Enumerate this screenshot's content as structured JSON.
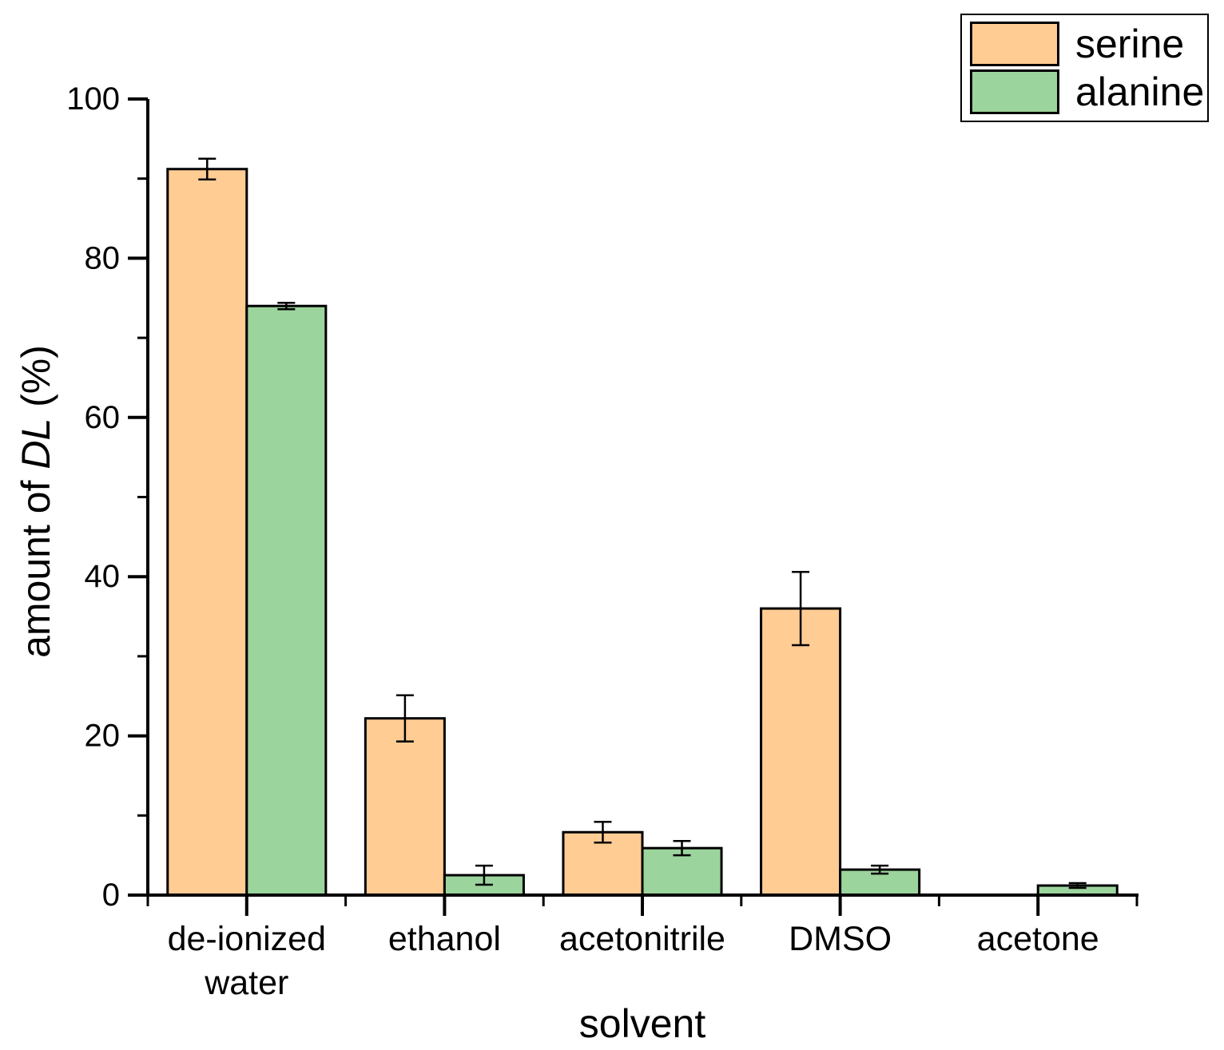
{
  "chart_data": {
    "type": "bar",
    "title": "",
    "xlabel": "solvent",
    "ylabel": "amount of DL (%)",
    "ylabel_parts": {
      "prefix": "amount of ",
      "italic": "DL",
      "suffix": " (%)"
    },
    "categories": [
      "de-ionized water",
      "ethanol",
      "acetonitrile",
      "DMSO",
      "acetone"
    ],
    "category_label_lines": [
      [
        "de-ionized",
        "water"
      ],
      [
        "ethanol"
      ],
      [
        "acetonitrile"
      ],
      [
        "DMSO"
      ],
      [
        "acetone"
      ]
    ],
    "series": [
      {
        "name": "serine",
        "color": "#FFCC94",
        "values": [
          91.2,
          22.2,
          7.9,
          36.0,
          0
        ],
        "errors": [
          1.3,
          2.9,
          1.3,
          4.6,
          null
        ]
      },
      {
        "name": "alanine",
        "color": "#9CD49D",
        "values": [
          74.0,
          2.5,
          5.9,
          3.2,
          1.2
        ],
        "errors": [
          0.4,
          1.2,
          0.9,
          0.5,
          0.3
        ]
      }
    ],
    "ylim": [
      0,
      100
    ],
    "y_major_step": 20,
    "y_minor_step": 10,
    "y_tick_labels": [
      "0",
      "20",
      "40",
      "60",
      "80",
      "100"
    ],
    "grid": false,
    "legend_position": "top-right",
    "bar_outline_color": "#000000",
    "error_bar_color": "#000000",
    "axis_color": "#000000",
    "background_color": "#FFFFFF"
  }
}
